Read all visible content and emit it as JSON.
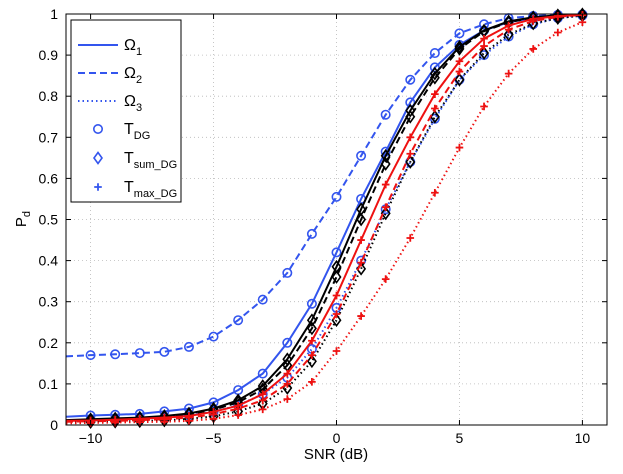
{
  "chart_data": {
    "type": "line",
    "title": "",
    "xlabel": "SNR (dB)",
    "ylabel_main": "P",
    "ylabel_sub": "d",
    "xlim": [
      -11,
      11
    ],
    "ylim": [
      0,
      1
    ],
    "xticks": [
      -10,
      -5,
      0,
      5,
      10
    ],
    "yticks": [
      0,
      0.1,
      0.2,
      0.3,
      0.4,
      0.5,
      0.6,
      0.7,
      0.8,
      0.9,
      1
    ],
    "grid": true,
    "x": [
      -11,
      -10,
      -9,
      -8,
      -7,
      -6,
      -5,
      -4,
      -3,
      -2,
      -1,
      0,
      1,
      2,
      3,
      4,
      5,
      6,
      7,
      8,
      9,
      10
    ],
    "legend_position": "top-left",
    "legend": [
      {
        "main": "Ω",
        "sub": "1",
        "style": "solid-line"
      },
      {
        "main": "Ω",
        "sub": "2",
        "style": "dashed-line"
      },
      {
        "main": "Ω",
        "sub": "3",
        "style": "dotted-line"
      },
      {
        "main": "T",
        "sub": "DG",
        "style": "circle-marker"
      },
      {
        "main": "T",
        "sub": "sum_DG",
        "style": "diamond-marker"
      },
      {
        "main": "T",
        "sub": "max_DG",
        "style": "plus-marker"
      }
    ],
    "colors": {
      "dg": "#3355ee",
      "sum": "#000000",
      "max": "#ee1111"
    },
    "series": [
      {
        "name": "T_DG Ω1",
        "color": "dg",
        "dash": "solid",
        "marker": "circle",
        "values": [
          0.02,
          0.023,
          0.025,
          0.027,
          0.033,
          0.04,
          0.055,
          0.085,
          0.125,
          0.2,
          0.295,
          0.42,
          0.55,
          0.665,
          0.785,
          0.87,
          0.925,
          0.96,
          0.98,
          0.99,
          0.995,
          0.998
        ]
      },
      {
        "name": "T_DG Ω2",
        "color": "dg",
        "dash": "dashed",
        "marker": "circle",
        "values": [
          0.167,
          0.17,
          0.172,
          0.175,
          0.178,
          0.19,
          0.215,
          0.255,
          0.305,
          0.37,
          0.465,
          0.555,
          0.655,
          0.755,
          0.84,
          0.905,
          0.953,
          0.975,
          0.99,
          0.995,
          0.998,
          0.999
        ]
      },
      {
        "name": "T_DG Ω3",
        "color": "dg",
        "dash": "dotted",
        "marker": "circle",
        "values": [
          0.01,
          0.012,
          0.013,
          0.015,
          0.018,
          0.024,
          0.032,
          0.048,
          0.075,
          0.115,
          0.185,
          0.285,
          0.4,
          0.525,
          0.64,
          0.745,
          0.84,
          0.9,
          0.945,
          0.975,
          0.99,
          0.996
        ]
      },
      {
        "name": "T_sum_DG Ω1",
        "color": "sum",
        "dash": "solid",
        "marker": "diamond",
        "values": [
          0.012,
          0.014,
          0.016,
          0.018,
          0.022,
          0.028,
          0.04,
          0.06,
          0.095,
          0.16,
          0.255,
          0.385,
          0.525,
          0.655,
          0.765,
          0.855,
          0.92,
          0.96,
          0.982,
          0.992,
          0.997,
          0.999
        ]
      },
      {
        "name": "T_sum_DG Ω2",
        "color": "sum",
        "dash": "dashed",
        "marker": "diamond",
        "values": [
          0.011,
          0.013,
          0.015,
          0.017,
          0.02,
          0.026,
          0.037,
          0.055,
          0.087,
          0.145,
          0.235,
          0.36,
          0.5,
          0.635,
          0.75,
          0.845,
          0.915,
          0.958,
          0.98,
          0.991,
          0.996,
          0.999
        ]
      },
      {
        "name": "T_sum_DG Ω3",
        "color": "sum",
        "dash": "dotted",
        "marker": "diamond",
        "values": [
          0.006,
          0.007,
          0.008,
          0.009,
          0.011,
          0.015,
          0.021,
          0.033,
          0.052,
          0.09,
          0.155,
          0.255,
          0.38,
          0.515,
          0.64,
          0.75,
          0.84,
          0.905,
          0.95,
          0.977,
          0.99,
          0.996
        ]
      },
      {
        "name": "T_max_DG Ω1",
        "color": "max",
        "dash": "solid",
        "marker": "plus",
        "values": [
          0.01,
          0.011,
          0.013,
          0.015,
          0.018,
          0.022,
          0.032,
          0.047,
          0.075,
          0.125,
          0.205,
          0.315,
          0.45,
          0.585,
          0.7,
          0.805,
          0.885,
          0.94,
          0.972,
          0.988,
          0.995,
          0.998
        ]
      },
      {
        "name": "T_max_DG Ω2",
        "color": "max",
        "dash": "dashed",
        "marker": "plus",
        "values": [
          0.008,
          0.009,
          0.01,
          0.012,
          0.014,
          0.018,
          0.026,
          0.04,
          0.06,
          0.1,
          0.17,
          0.27,
          0.395,
          0.53,
          0.66,
          0.77,
          0.86,
          0.922,
          0.962,
          0.983,
          0.993,
          0.998
        ]
      },
      {
        "name": "T_max_DG Ω3",
        "color": "max",
        "dash": "dotted",
        "marker": "plus",
        "values": [
          0.004,
          0.005,
          0.006,
          0.007,
          0.008,
          0.01,
          0.015,
          0.024,
          0.038,
          0.063,
          0.105,
          0.18,
          0.265,
          0.355,
          0.455,
          0.565,
          0.675,
          0.775,
          0.855,
          0.915,
          0.955,
          0.98
        ]
      }
    ]
  }
}
